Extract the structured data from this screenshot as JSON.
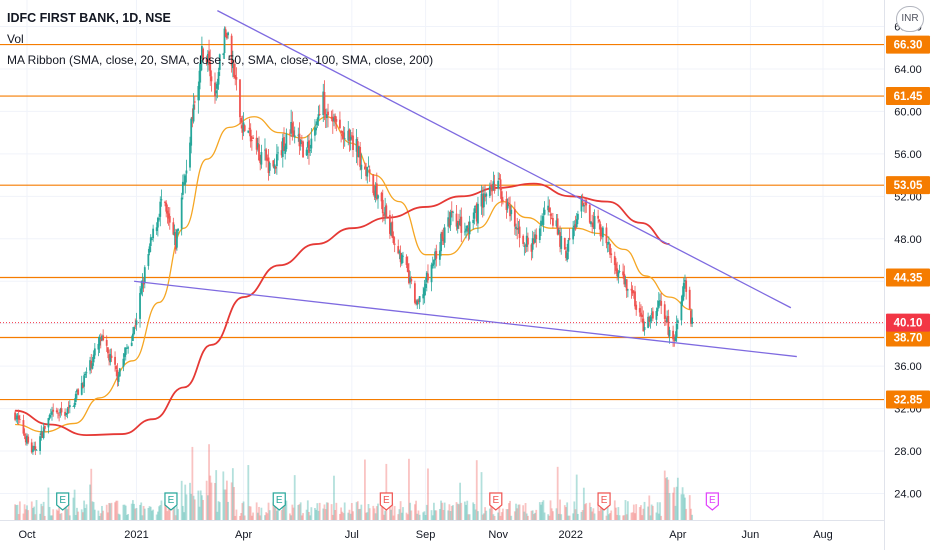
{
  "header": {
    "symbol": "IDFC FIRST BANK, 1D, NSE",
    "volume_label": "Vol",
    "indicator": "MA Ribbon (SMA, close, 20, SMA, close, 50, SMA, close, 100, SMA, close, 200)",
    "currency": "INR"
  },
  "colors": {
    "bull": "#26a69a",
    "bear": "#ef5350",
    "level": "#f57c00",
    "trendline": "#7e6ae0",
    "ma20": "#f5a623",
    "ma100": "#e53935",
    "last_price": "#f23645",
    "earnings_green": "#26a69a",
    "earnings_red": "#ef5350",
    "earnings_pink": "#e040fb"
  },
  "chart_data": {
    "type": "candlestick",
    "title": "IDFC FIRST BANK, 1D, NSE",
    "y_axis": {
      "ticks": [
        24,
        28,
        32,
        36,
        40,
        44,
        48,
        52,
        56,
        60,
        64,
        68
      ],
      "range": [
        21.5,
        70.5
      ]
    },
    "x_axis": {
      "ticks": [
        "Oct",
        "2021",
        "Apr",
        "Jul",
        "Sep",
        "Nov",
        "2022",
        "Apr",
        "Jun",
        "Aug"
      ]
    },
    "horizontal_levels": [
      {
        "value": 66.3,
        "label": "66.30"
      },
      {
        "value": 61.45,
        "label": "61.45"
      },
      {
        "value": 53.05,
        "label": "53.05"
      },
      {
        "value": 44.35,
        "label": "44.35"
      },
      {
        "value": 38.7,
        "label": "38.70"
      },
      {
        "value": 32.85,
        "label": "32.85"
      }
    ],
    "last_price": {
      "value": 40.1,
      "label": "40.10"
    },
    "price_path": [
      [
        "2020-09-21",
        31.5
      ],
      [
        "2020-10-06",
        27.8
      ],
      [
        "2020-10-20",
        31.2
      ],
      [
        "2020-11-05",
        31.8
      ],
      [
        "2020-11-18",
        34.8
      ],
      [
        "2020-12-02",
        38.5
      ],
      [
        "2020-12-16",
        35.2
      ],
      [
        "2020-12-30",
        39.5
      ],
      [
        "2021-01-11",
        46.5
      ],
      [
        "2021-01-22",
        51.5
      ],
      [
        "2021-02-03",
        47.5
      ],
      [
        "2021-02-15",
        58.0
      ],
      [
        "2021-02-26",
        66.0
      ],
      [
        "2021-03-08",
        62.5
      ],
      [
        "2021-03-18",
        68.0
      ],
      [
        "2021-03-30",
        59.0
      ],
      [
        "2021-04-12",
        56.5
      ],
      [
        "2021-04-26",
        54.5
      ],
      [
        "2021-05-10",
        58.5
      ],
      [
        "2021-05-24",
        56.0
      ],
      [
        "2021-06-07",
        61.0
      ],
      [
        "2021-06-21",
        58.0
      ],
      [
        "2021-07-05",
        56.5
      ],
      [
        "2021-07-19",
        53.0
      ],
      [
        "2021-08-02",
        49.0
      ],
      [
        "2021-08-16",
        45.0
      ],
      [
        "2021-08-25",
        41.5
      ],
      [
        "2021-09-08",
        46.0
      ],
      [
        "2021-09-22",
        50.0
      ],
      [
        "2021-10-06",
        48.5
      ],
      [
        "2021-10-20",
        52.0
      ],
      [
        "2021-11-01",
        53.2
      ],
      [
        "2021-11-15",
        49.0
      ],
      [
        "2021-11-29",
        47.0
      ],
      [
        "2021-12-13",
        51.5
      ],
      [
        "2021-12-27",
        46.5
      ],
      [
        "2022-01-10",
        51.0
      ],
      [
        "2022-01-24",
        49.5
      ],
      [
        "2022-02-07",
        45.5
      ],
      [
        "2022-02-21",
        43.0
      ],
      [
        "2022-03-04",
        39.5
      ],
      [
        "2022-03-18",
        42.0
      ],
      [
        "2022-03-28",
        38.0
      ],
      [
        "2022-04-06",
        44.0
      ],
      [
        "2022-04-13",
        40.1
      ]
    ],
    "series": [
      {
        "ma": "SMA 20",
        "color": "#f5a623",
        "points": [
          [
            "2020-09-21",
            30.5
          ],
          [
            "2020-10-15",
            29.8
          ],
          [
            "2020-11-10",
            30.6
          ],
          [
            "2020-12-01",
            33.0
          ],
          [
            "2020-12-29",
            36.5
          ],
          [
            "2021-01-20",
            42.0
          ],
          [
            "2021-02-10",
            49.0
          ],
          [
            "2021-03-01",
            55.5
          ],
          [
            "2021-03-20",
            58.5
          ],
          [
            "2021-04-10",
            59.5
          ],
          [
            "2021-05-01",
            58.0
          ],
          [
            "2021-05-20",
            57.5
          ],
          [
            "2021-06-10",
            59.5
          ],
          [
            "2021-07-01",
            57.0
          ],
          [
            "2021-07-20",
            54.0
          ],
          [
            "2021-08-10",
            51.5
          ],
          [
            "2021-09-01",
            46.5
          ],
          [
            "2021-09-20",
            46.5
          ],
          [
            "2021-10-15",
            49.0
          ],
          [
            "2021-11-05",
            51.5
          ],
          [
            "2021-11-25",
            50.0
          ],
          [
            "2021-12-15",
            49.0
          ],
          [
            "2022-01-05",
            49.0
          ],
          [
            "2022-01-25",
            48.5
          ],
          [
            "2022-02-15",
            47.0
          ],
          [
            "2022-03-05",
            44.5
          ],
          [
            "2022-03-25",
            42.5
          ],
          [
            "2022-04-13",
            41.3
          ]
        ]
      },
      {
        "ma": "SMA 100",
        "color": "#e53935",
        "points": [
          [
            "2020-09-21",
            31.8
          ],
          [
            "2020-10-20",
            30.5
          ],
          [
            "2020-11-20",
            29.5
          ],
          [
            "2020-12-20",
            29.6
          ],
          [
            "2021-01-15",
            31.0
          ],
          [
            "2021-02-10",
            34.0
          ],
          [
            "2021-03-05",
            38.0
          ],
          [
            "2021-04-01",
            42.5
          ],
          [
            "2021-05-01",
            45.5
          ],
          [
            "2021-06-01",
            47.5
          ],
          [
            "2021-07-01",
            49.0
          ],
          [
            "2021-08-01",
            50.0
          ],
          [
            "2021-09-01",
            51.0
          ],
          [
            "2021-10-01",
            52.0
          ],
          [
            "2021-11-01",
            52.8
          ],
          [
            "2021-12-01",
            53.2
          ],
          [
            "2022-01-01",
            52.0
          ],
          [
            "2022-02-01",
            51.5
          ],
          [
            "2022-03-01",
            49.5
          ],
          [
            "2022-03-25",
            47.5
          ]
        ]
      }
    ],
    "trendlines": [
      {
        "from": [
          "2021-03-10",
          69.5
        ],
        "to": [
          "2022-07-05",
          41.5
        ]
      },
      {
        "from": [
          "2020-12-30",
          44.0
        ],
        "to": [
          "2022-07-10",
          36.9
        ]
      }
    ],
    "earnings_markers": [
      {
        "date": "2020-10-31",
        "color": "green",
        "label": "E"
      },
      {
        "date": "2021-01-30",
        "color": "green",
        "label": "E"
      },
      {
        "date": "2021-05-01",
        "color": "green",
        "label": "E"
      },
      {
        "date": "2021-07-30",
        "color": "red",
        "label": "E"
      },
      {
        "date": "2021-10-30",
        "color": "red",
        "label": "E"
      },
      {
        "date": "2022-01-29",
        "color": "red",
        "label": "E"
      },
      {
        "date": "2022-04-30",
        "color": "pink",
        "label": "E"
      }
    ]
  }
}
